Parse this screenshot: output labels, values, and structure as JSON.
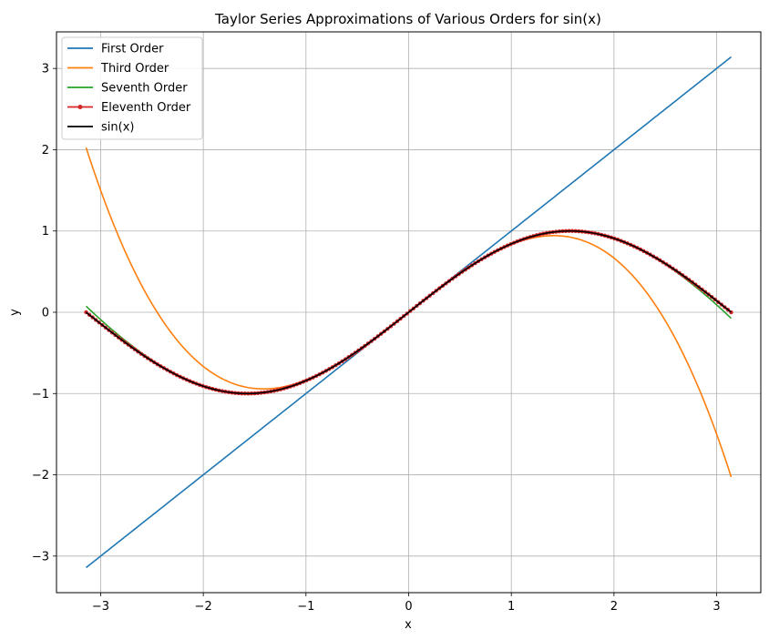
{
  "chart_data": {
    "type": "line",
    "title": "Taylor Series Approximations of Various Orders for sin(x)",
    "xlabel": "x",
    "ylabel": "y",
    "xlim": [
      -3.43,
      3.43
    ],
    "ylim": [
      -3.45,
      3.45
    ],
    "x_domain": [
      -3.14159,
      3.14159
    ],
    "xticks": [
      -3,
      -2,
      -1,
      0,
      1,
      2,
      3
    ],
    "yticks": [
      -3,
      -2,
      -1,
      0,
      1,
      2,
      3
    ],
    "xtick_labels": [
      "−3",
      "−2",
      "−1",
      "0",
      "1",
      "2",
      "3"
    ],
    "ytick_labels": [
      "−3",
      "−2",
      "−1",
      "0",
      "1",
      "2",
      "3"
    ],
    "grid": true,
    "legend_position": "upper-left",
    "series": [
      {
        "name": "First Order",
        "order": 1,
        "color": "#1f77b4",
        "marker": "none"
      },
      {
        "name": "Third Order",
        "order": 3,
        "color": "#ff7f0e",
        "marker": "none"
      },
      {
        "name": "Seventh Order",
        "order": 7,
        "color": "#2ca02c",
        "marker": "none"
      },
      {
        "name": "Eleventh Order",
        "order": 11,
        "color": "#d62728",
        "marker": "dot"
      },
      {
        "name": "sin(x)",
        "order": "exact",
        "color": "#000000",
        "marker": "none"
      }
    ]
  }
}
